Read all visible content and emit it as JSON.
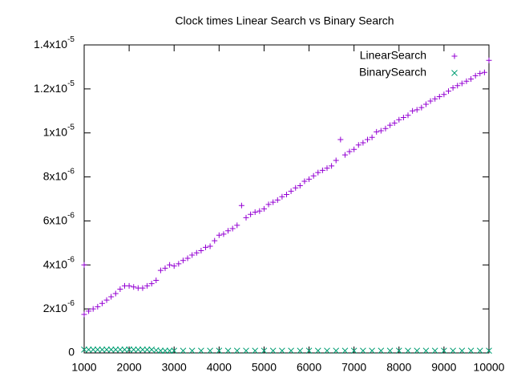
{
  "chart_data": {
    "type": "scatter",
    "title": "Clock times Linear Search vs Binary Search",
    "xlim": [
      1000,
      10000
    ],
    "xticks": [
      1000,
      2000,
      3000,
      4000,
      5000,
      6000,
      7000,
      8000,
      9000,
      10000
    ],
    "ylim": [
      0,
      1.4e-05
    ],
    "yticks": [
      0,
      {
        "value": 2e-06,
        "label": "2x10",
        "exponent": "-6"
      },
      {
        "value": 4e-06,
        "label": "4x10",
        "exponent": "-6"
      },
      {
        "value": 6e-06,
        "label": "6x10",
        "exponent": "-6"
      },
      {
        "value": 8e-06,
        "label": "8x10",
        "exponent": "-6"
      },
      {
        "value": 1e-05,
        "label": "1x10",
        "exponent": "-5"
      },
      {
        "value": 1.2e-05,
        "label": "1.2x10",
        "exponent": "-5"
      },
      {
        "value": 1.4e-05,
        "label": "1.4x10",
        "exponent": "-5"
      }
    ],
    "legend": "top-right",
    "series": [
      {
        "name": "LinearSearch",
        "color": "#9400d3",
        "marker": "plus",
        "x": [
          1000,
          1100,
          1200,
          1300,
          1400,
          1500,
          1600,
          1700,
          1800,
          1900,
          2000,
          2100,
          2200,
          2300,
          2400,
          2500,
          2600,
          2700,
          2800,
          2900,
          3000,
          3100,
          3200,
          3300,
          3400,
          3500,
          3600,
          3700,
          3800,
          3900,
          4000,
          4100,
          4200,
          4300,
          4400,
          4500,
          4600,
          4700,
          4800,
          4900,
          5000,
          5100,
          5200,
          5300,
          5400,
          5500,
          5600,
          5700,
          5800,
          5900,
          6000,
          6100,
          6200,
          6300,
          6400,
          6500,
          6600,
          6700,
          6800,
          6900,
          7000,
          7100,
          7200,
          7300,
          7400,
          7500,
          7600,
          7700,
          7800,
          7900,
          8000,
          8100,
          8200,
          8300,
          8400,
          8500,
          8600,
          8700,
          8800,
          8900,
          9000,
          9100,
          9200,
          9300,
          9400,
          9500,
          9600,
          9700,
          9800,
          9900,
          10000,
          1000
        ],
        "values": [
          1.75e-06,
          1.9e-06,
          2e-06,
          2.1e-06,
          2.25e-06,
          2.4e-06,
          2.55e-06,
          2.7e-06,
          2.9e-06,
          3.05e-06,
          3.05e-06,
          3e-06,
          2.95e-06,
          2.95e-06,
          3.05e-06,
          3.15e-06,
          3.3e-06,
          3.75e-06,
          3.85e-06,
          4e-06,
          3.95e-06,
          4.05e-06,
          4.2e-06,
          4.3e-06,
          4.45e-06,
          4.55e-06,
          4.65e-06,
          4.8e-06,
          4.85e-06,
          5.1e-06,
          5.35e-06,
          5.4e-06,
          5.55e-06,
          5.65e-06,
          5.8e-06,
          6.7e-06,
          6.15e-06,
          6.3e-06,
          6.4e-06,
          6.45e-06,
          6.55e-06,
          6.75e-06,
          6.85e-06,
          6.95e-06,
          7.1e-06,
          7.2e-06,
          7.35e-06,
          7.5e-06,
          7.6e-06,
          7.8e-06,
          7.9e-06,
          8.05e-06,
          8.2e-06,
          8.3e-06,
          8.4e-06,
          8.5e-06,
          8.75e-06,
          9.7e-06,
          9e-06,
          9.15e-06,
          9.25e-06,
          9.45e-06,
          9.55e-06,
          9.7e-06,
          9.8e-06,
          1.005e-05,
          1.01e-05,
          1.02e-05,
          1.035e-05,
          1.045e-05,
          1.06e-05,
          1.07e-05,
          1.08e-05,
          1.1e-05,
          1.105e-05,
          1.115e-05,
          1.13e-05,
          1.145e-05,
          1.155e-05,
          1.165e-05,
          1.175e-05,
          1.19e-05,
          1.205e-05,
          1.215e-05,
          1.225e-05,
          1.235e-05,
          1.245e-05,
          1.26e-05,
          1.27e-05,
          1.275e-05,
          1.33e-05,
          4e-06
        ]
      },
      {
        "name": "BinarySearch",
        "color": "#009e73",
        "marker": "cross",
        "x": [
          1000,
          1100,
          1200,
          1300,
          1400,
          1500,
          1600,
          1700,
          1800,
          1900,
          2000,
          2100,
          2200,
          2300,
          2400,
          2500,
          2600,
          2700,
          2800,
          2900,
          3000,
          3200,
          3400,
          3600,
          3800,
          4000,
          4200,
          4400,
          4600,
          4800,
          5000,
          5200,
          5400,
          5600,
          5800,
          6000,
          6200,
          6400,
          6600,
          6800,
          7000,
          7200,
          7400,
          7600,
          7800,
          8000,
          8200,
          8400,
          8600,
          8800,
          9000,
          9200,
          9400,
          9600,
          9800,
          10000
        ],
        "values": [
          1.5e-07,
          1.5e-07,
          1.5e-07,
          1.5e-07,
          1.5e-07,
          1.5e-07,
          1.5e-07,
          1.5e-07,
          1.5e-07,
          1.5e-07,
          1.5e-07,
          1.5e-07,
          1.5e-07,
          1.5e-07,
          1.5e-07,
          1.5e-07,
          1.2e-07,
          1e-07,
          1e-07,
          1e-07,
          1e-07,
          1e-07,
          1e-07,
          1e-07,
          1e-07,
          1e-07,
          1e-07,
          1e-07,
          1e-07,
          1e-07,
          1e-07,
          1e-07,
          1e-07,
          1e-07,
          1e-07,
          1e-07,
          1e-07,
          1e-07,
          1e-07,
          1e-07,
          1e-07,
          1e-07,
          1e-07,
          1e-07,
          1e-07,
          1e-07,
          1e-07,
          1e-07,
          1e-07,
          1e-07,
          1e-07,
          1e-07,
          1e-07,
          1e-07,
          1e-07,
          1e-07
        ]
      }
    ]
  }
}
